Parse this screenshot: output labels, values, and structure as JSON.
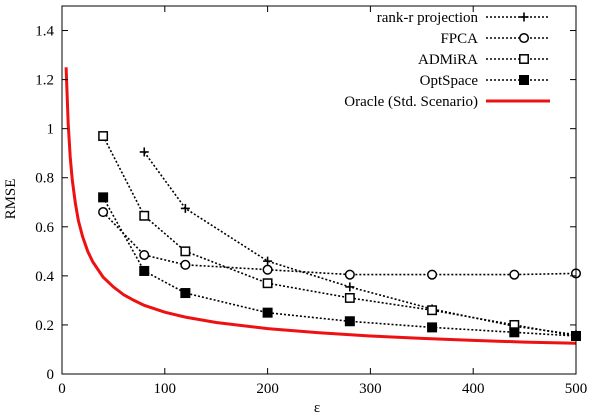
{
  "chart_data": {
    "type": "line",
    "title": "",
    "xlabel": "ε",
    "ylabel": "RMSE",
    "xlim": [
      0,
      500
    ],
    "ylim": [
      0,
      1.5
    ],
    "x_ticks": [
      0,
      100,
      200,
      300,
      400,
      500
    ],
    "y_ticks": [
      0,
      0.2,
      0.4,
      0.6,
      0.8,
      1.0,
      1.2,
      1.4
    ],
    "x_tick_labels": [
      "0",
      "100",
      "200",
      "300",
      "400",
      "500"
    ],
    "y_tick_labels": [
      "0",
      "0.2",
      "0.4",
      "0.6",
      "0.8",
      "1",
      "1.2",
      "1.4"
    ],
    "grid": false,
    "legend_position": "top-right",
    "series": [
      {
        "name": "rank-r projection",
        "marker": "plus",
        "style": "dotted",
        "color": "#000000",
        "x": [
          80,
          120,
          200,
          280,
          360,
          440,
          500
        ],
        "y": [
          0.905,
          0.675,
          0.46,
          0.355,
          0.265,
          0.195,
          0.16
        ]
      },
      {
        "name": "FPCA",
        "marker": "circle",
        "style": "dotted",
        "color": "#000000",
        "x": [
          40,
          80,
          120,
          200,
          280,
          360,
          440,
          500
        ],
        "y": [
          0.66,
          0.485,
          0.445,
          0.425,
          0.405,
          0.405,
          0.405,
          0.41
        ]
      },
      {
        "name": "ADMiRA",
        "marker": "square-open",
        "style": "dotted",
        "color": "#000000",
        "x": [
          40,
          80,
          120,
          200,
          280,
          360,
          440,
          500
        ],
        "y": [
          0.97,
          0.645,
          0.5,
          0.37,
          0.31,
          0.26,
          0.2,
          0.155
        ]
      },
      {
        "name": "OptSpace",
        "marker": "square-filled",
        "style": "dotted",
        "color": "#000000",
        "x": [
          40,
          80,
          120,
          200,
          280,
          360,
          440,
          500
        ],
        "y": [
          0.72,
          0.42,
          0.33,
          0.25,
          0.215,
          0.19,
          0.17,
          0.155
        ]
      },
      {
        "name": "Oracle (Std. Scenario)",
        "marker": "none",
        "style": "solid",
        "color": "#ee1111",
        "x": [
          4,
          6,
          8,
          10,
          13,
          16,
          20,
          25,
          30,
          40,
          50,
          60,
          70,
          80,
          100,
          120,
          150,
          200,
          250,
          300,
          350,
          400,
          450,
          500
        ],
        "y": [
          1.25,
          1.02,
          0.885,
          0.79,
          0.695,
          0.625,
          0.56,
          0.5,
          0.457,
          0.395,
          0.355,
          0.323,
          0.3,
          0.28,
          0.252,
          0.232,
          0.21,
          0.185,
          0.168,
          0.155,
          0.145,
          0.137,
          0.13,
          0.125
        ]
      }
    ]
  }
}
